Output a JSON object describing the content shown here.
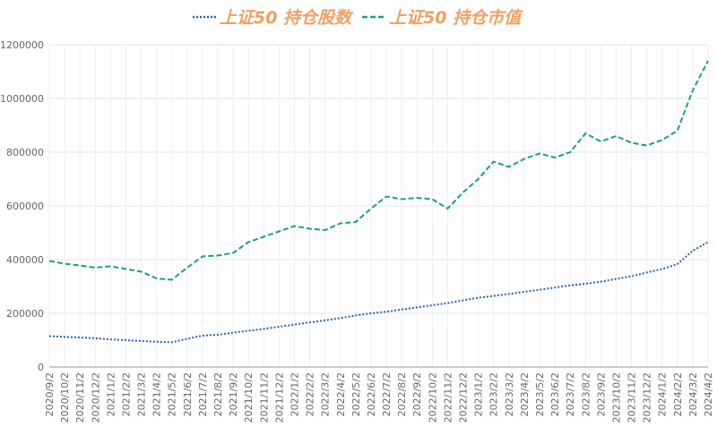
{
  "chart_data": {
    "type": "line",
    "categories": [
      "2020/9/2",
      "2020/10/2",
      "2020/11/2",
      "2020/12/2",
      "2021/1/2",
      "2021/2/2",
      "2021/3/2",
      "2021/4/2",
      "2021/5/2",
      "2021/6/2",
      "2021/7/2",
      "2021/8/2",
      "2021/9/2",
      "2021/10/2",
      "2021/11/2",
      "2021/12/2",
      "2022/1/2",
      "2022/2/2",
      "2022/3/2",
      "2022/4/2",
      "2022/5/2",
      "2022/6/2",
      "2022/7/2",
      "2022/8/2",
      "2022/9/2",
      "2022/10/2",
      "2022/11/2",
      "2022/12/2",
      "2023/1/2",
      "2023/2/2",
      "2023/3/2",
      "2023/4/2",
      "2023/5/2",
      "2023/6/2",
      "2023/7/2",
      "2023/8/2",
      "2023/9/2",
      "2023/10/2",
      "2023/11/2",
      "2023/12/2",
      "2024/1/2",
      "2024/2/2",
      "2024/3/2",
      "2024/4/2"
    ],
    "series": [
      {
        "name": "上证50 持仓股数",
        "color": "#2f5fb3",
        "dash": "2,2",
        "values": [
          115000,
          112000,
          110000,
          107000,
          103000,
          100000,
          97000,
          94000,
          92000,
          105000,
          117000,
          120000,
          128000,
          135000,
          142000,
          150000,
          158000,
          166000,
          174000,
          182000,
          192000,
          200000,
          206000,
          214000,
          222000,
          230000,
          238000,
          248000,
          258000,
          265000,
          272000,
          280000,
          288000,
          296000,
          304000,
          310000,
          318000,
          328000,
          338000,
          352000,
          365000,
          383000,
          433000,
          465000
        ]
      },
      {
        "name": "上证50 持仓市值",
        "color": "#1aa372",
        "dash": "6,3",
        "values": [
          395000,
          385000,
          378000,
          370000,
          375000,
          365000,
          355000,
          330000,
          325000,
          370000,
          412000,
          415000,
          425000,
          465000,
          485000,
          505000,
          525000,
          515000,
          510000,
          535000,
          540000,
          590000,
          635000,
          625000,
          630000,
          625000,
          590000,
          650000,
          700000,
          765000,
          745000,
          775000,
          795000,
          780000,
          800000,
          870000,
          840000,
          860000,
          835000,
          825000,
          845000,
          880000,
          1030000,
          1140000
        ]
      }
    ],
    "ylim": [
      0,
      1200000
    ],
    "yticks": [
      0,
      200000,
      400000,
      600000,
      800000,
      1000000,
      1200000
    ],
    "grid": true
  }
}
